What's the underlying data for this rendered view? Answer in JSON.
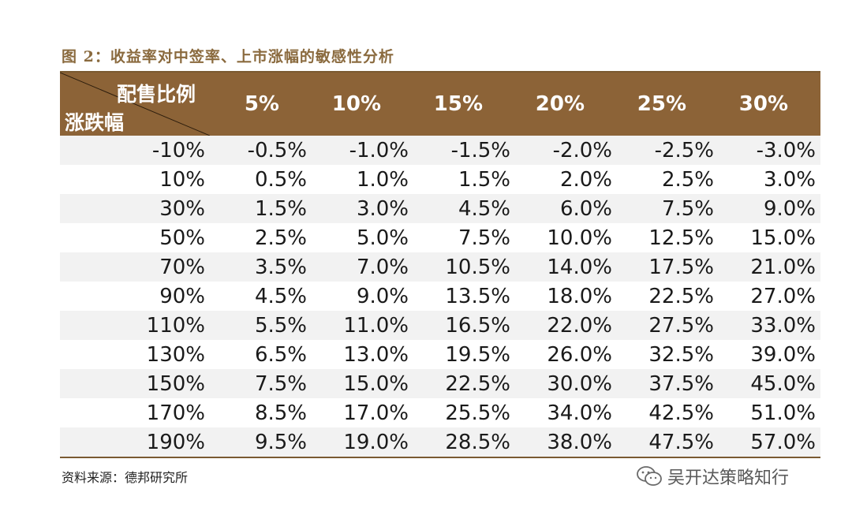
{
  "title": "图 2：收益率对中签率、上市涨幅的敏感性分析",
  "table": {
    "corner_top": "配售比例",
    "corner_bottom": "涨跌幅",
    "columns": [
      "5%",
      "10%",
      "15%",
      "20%",
      "25%",
      "30%"
    ],
    "rows": [
      {
        "label": "-10%",
        "values": [
          "-0.5%",
          "-1.0%",
          "-1.5%",
          "-2.0%",
          "-2.5%",
          "-3.0%"
        ]
      },
      {
        "label": "10%",
        "values": [
          "0.5%",
          "1.0%",
          "1.5%",
          "2.0%",
          "2.5%",
          "3.0%"
        ]
      },
      {
        "label": "30%",
        "values": [
          "1.5%",
          "3.0%",
          "4.5%",
          "6.0%",
          "7.5%",
          "9.0%"
        ]
      },
      {
        "label": "50%",
        "values": [
          "2.5%",
          "5.0%",
          "7.5%",
          "10.0%",
          "12.5%",
          "15.0%"
        ]
      },
      {
        "label": "70%",
        "values": [
          "3.5%",
          "7.0%",
          "10.5%",
          "14.0%",
          "17.5%",
          "21.0%"
        ]
      },
      {
        "label": "90%",
        "values": [
          "4.5%",
          "9.0%",
          "13.5%",
          "18.0%",
          "22.5%",
          "27.0%"
        ]
      },
      {
        "label": "110%",
        "values": [
          "5.5%",
          "11.0%",
          "16.5%",
          "22.0%",
          "27.5%",
          "33.0%"
        ]
      },
      {
        "label": "130%",
        "values": [
          "6.5%",
          "13.0%",
          "19.5%",
          "26.0%",
          "32.5%",
          "39.0%"
        ]
      },
      {
        "label": "150%",
        "values": [
          "7.5%",
          "15.0%",
          "22.5%",
          "30.0%",
          "37.5%",
          "45.0%"
        ]
      },
      {
        "label": "170%",
        "values": [
          "8.5%",
          "17.0%",
          "25.5%",
          "34.0%",
          "42.5%",
          "51.0%"
        ]
      },
      {
        "label": "190%",
        "values": [
          "9.5%",
          "19.0%",
          "28.5%",
          "38.0%",
          "47.5%",
          "57.0%"
        ]
      }
    ]
  },
  "source": "资料来源：德邦研究所",
  "watermark": {
    "text": "吴开达策略知行",
    "icon": "wechat-icon"
  },
  "colors": {
    "header_bg": "#8c6337",
    "title": "#8a6a3e",
    "rule": "#7a5a31",
    "row_alt": "#f2f2f2"
  }
}
